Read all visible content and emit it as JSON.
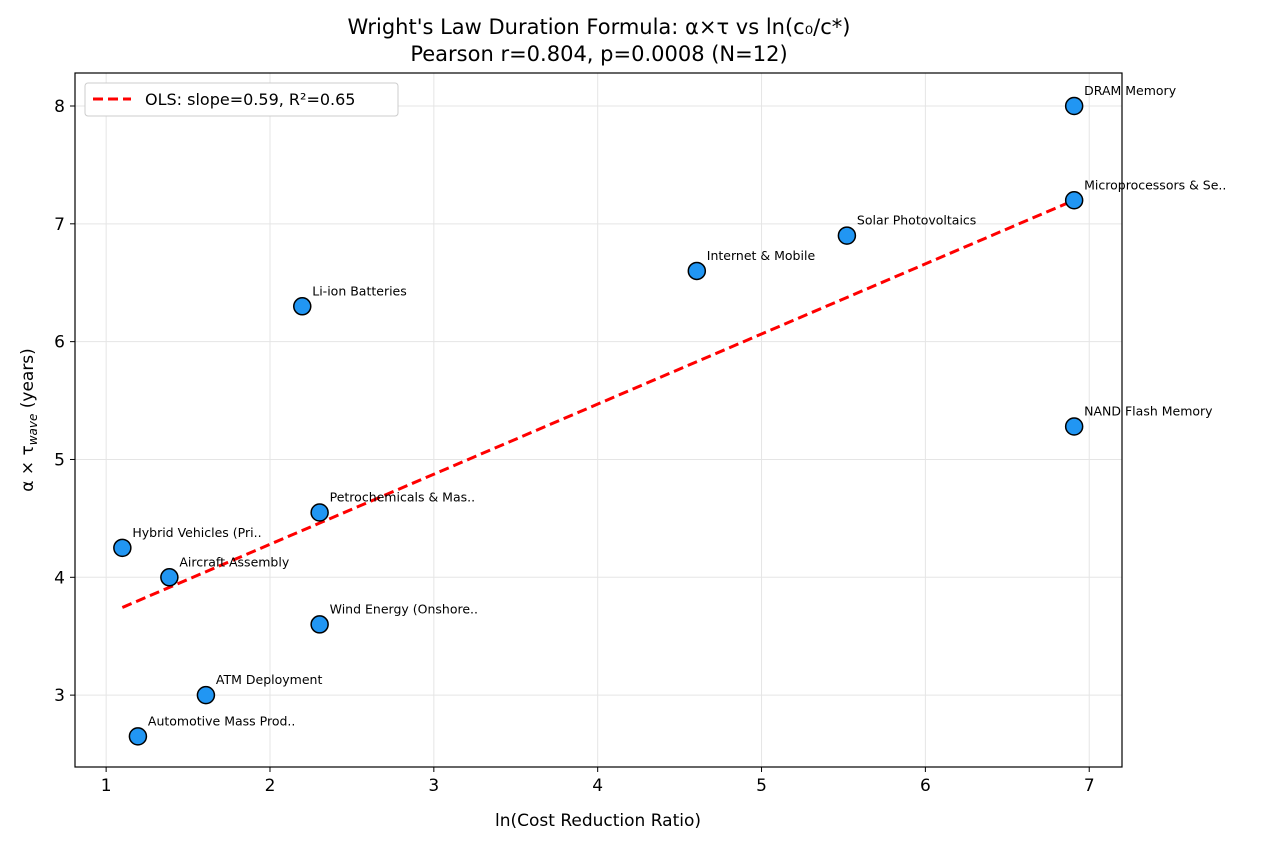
{
  "chart_data": {
    "type": "scatter",
    "title": "Wright's Law Duration Formula: α×τ vs ln(c₀/c*)",
    "subtitle": "Pearson r=0.804, p=0.0008 (N=12)",
    "xlabel": "ln(Cost Reduction Ratio)",
    "ylabel": {
      "main": "α × τ",
      "sub": "wave",
      "suffix": " (years)"
    },
    "xlim": [
      0.81,
      7.2
    ],
    "ylim": [
      2.39,
      8.28
    ],
    "xticks": [
      1,
      2,
      3,
      4,
      5,
      6,
      7
    ],
    "yticks": [
      3,
      4,
      5,
      6,
      7,
      8
    ],
    "grid": true,
    "legend_position": "top-left",
    "points": [
      {
        "label": "DRAM Memory",
        "x": 6.908,
        "y": 8.0
      },
      {
        "label": "Microprocessors & Se..",
        "x": 6.908,
        "y": 7.2
      },
      {
        "label": "Solar Photovoltaics",
        "x": 5.521,
        "y": 6.9
      },
      {
        "label": "Internet & Mobile",
        "x": 4.605,
        "y": 6.6
      },
      {
        "label": "Li-ion Batteries",
        "x": 2.197,
        "y": 6.3
      },
      {
        "label": "NAND Flash Memory",
        "x": 6.908,
        "y": 5.28
      },
      {
        "label": "Petrochemicals & Mas..",
        "x": 2.303,
        "y": 4.55
      },
      {
        "label": "Hybrid Vehicles (Pri..",
        "x": 1.099,
        "y": 4.25
      },
      {
        "label": "Aircraft Assembly",
        "x": 1.386,
        "y": 4.0
      },
      {
        "label": "Wind Energy (Onshore..",
        "x": 2.303,
        "y": 3.6
      },
      {
        "label": "ATM Deployment",
        "x": 1.609,
        "y": 3.0
      },
      {
        "label": "Automotive Mass Prod..",
        "x": 1.194,
        "y": 2.65
      }
    ],
    "fit": {
      "label": "OLS: slope=0.59, R²=0.65",
      "slope": 0.595,
      "intercept": 3.09,
      "x_range": [
        1.099,
        6.908
      ]
    },
    "colors": {
      "points": "#2196F3",
      "point_edge": "#000000",
      "fit": "#FF0000",
      "grid": "#e5e5e5"
    }
  }
}
